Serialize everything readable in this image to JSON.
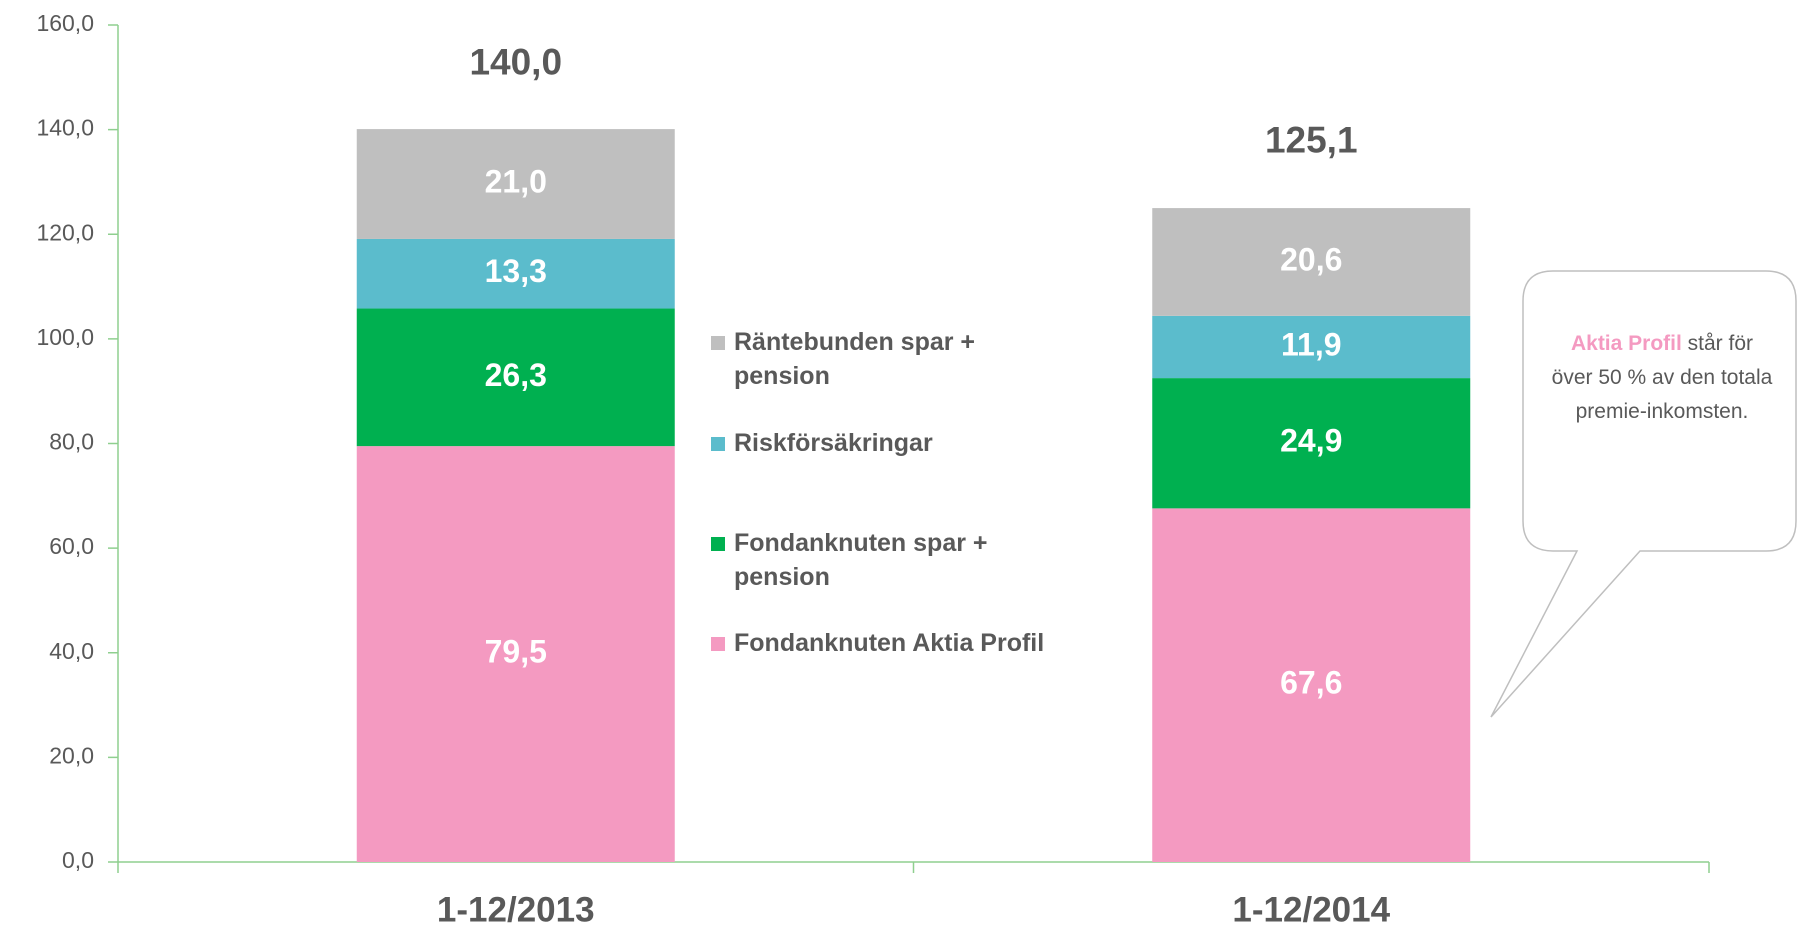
{
  "chart_data": {
    "type": "stacked_bar",
    "categories": [
      "1-12/2013",
      "1-12/2014"
    ],
    "series": [
      {
        "name": "Fondanknuten Aktia Profil",
        "color": "#f49ac1",
        "values": [
          79.5,
          67.6
        ],
        "value_labels": [
          "79,5",
          "67,6"
        ]
      },
      {
        "name": "Fondanknuten spar + pension",
        "color": "#00b050",
        "values": [
          26.3,
          24.9
        ],
        "value_labels": [
          "26,3",
          "24,9"
        ]
      },
      {
        "name": "Riskförsäkringar",
        "color": "#5bbccc",
        "values": [
          13.3,
          11.9
        ],
        "value_labels": [
          "13,3",
          "11,9"
        ]
      },
      {
        "name": "Räntebunden spar + pension",
        "color": "#bfbfbf",
        "values": [
          21.0,
          20.6
        ],
        "value_labels": [
          "21,0",
          "20,6"
        ]
      }
    ],
    "totals": [
      140.0,
      125.1
    ],
    "total_labels": [
      "140,0",
      "125,1"
    ],
    "ylim": [
      0,
      160
    ],
    "yticks": [
      {
        "value": 0,
        "label": "0,0"
      },
      {
        "value": 20,
        "label": "20,0"
      },
      {
        "value": 40,
        "label": "40,0"
      },
      {
        "value": 60,
        "label": "60,0"
      },
      {
        "value": 80,
        "label": "80,0"
      },
      {
        "value": 100,
        "label": "100,0"
      },
      {
        "value": 120,
        "label": "120,0"
      },
      {
        "value": 140,
        "label": "140,0"
      },
      {
        "value": 160,
        "label": "160,0"
      }
    ],
    "axis_color": "#8fcf8f",
    "annotation": {
      "highlight": "Aktia Profil",
      "text": "står för över 50 % av den totala premie-inkomsten."
    }
  }
}
